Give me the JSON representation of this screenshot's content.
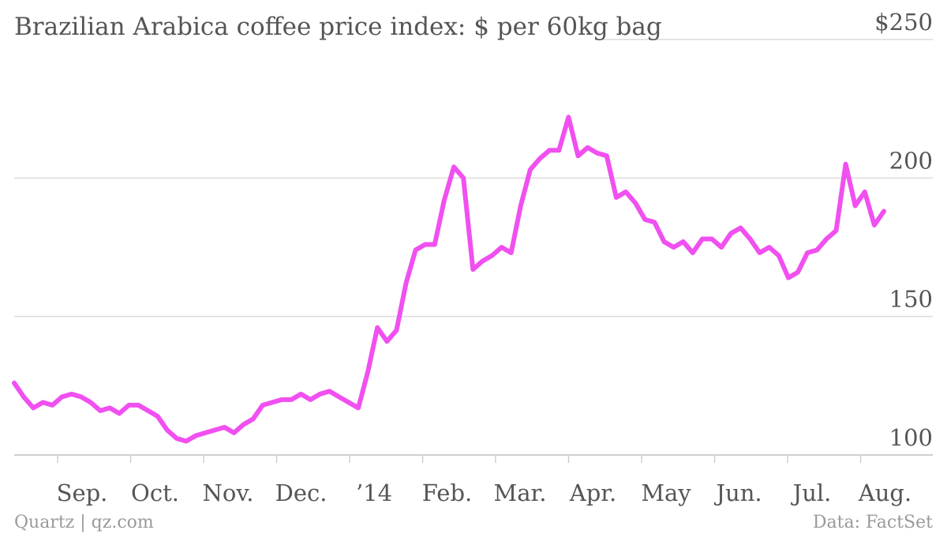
{
  "chart_data": {
    "type": "line",
    "title": "Brazilian Arabica coffee price index: $ per 60kg bag",
    "ylim": [
      100,
      250
    ],
    "y_ticks": [
      {
        "value": 250,
        "label": "$250"
      },
      {
        "value": 200,
        "label": "200"
      },
      {
        "value": 150,
        "label": "150"
      },
      {
        "value": 100,
        "label": "100"
      }
    ],
    "x_ticks": [
      "Sep.",
      "Oct.",
      "Nov.",
      "Dec.",
      "’14",
      "Feb.",
      "Mar.",
      "Apr.",
      "May",
      "Jun.",
      "Jul.",
      "Aug."
    ],
    "series": [
      {
        "color": "#f050f0",
        "x": [
          0,
          0.125,
          0.25,
          0.375,
          0.5,
          0.625,
          0.75,
          0.875,
          1,
          1.125,
          1.25,
          1.375,
          1.5,
          1.625,
          1.75,
          1.875,
          2,
          2.125,
          2.25,
          2.375,
          2.5,
          2.625,
          2.75,
          2.875,
          3,
          3.125,
          3.25,
          3.375,
          3.5,
          3.625,
          3.75,
          3.875,
          4,
          4.125,
          4.25,
          4.375,
          4.5,
          4.625,
          4.75,
          4.875,
          5,
          5.125,
          5.25,
          5.375,
          5.5,
          5.625,
          5.75,
          5.875,
          6,
          6.125,
          6.25,
          6.375,
          6.5,
          6.625,
          6.75,
          6.875,
          7,
          7.125,
          7.25,
          7.375,
          7.5,
          7.625,
          7.75,
          7.875,
          8,
          8.125,
          8.25,
          8.375,
          8.5,
          8.625,
          8.75,
          8.875,
          9,
          9.125,
          9.25,
          9.375,
          9.5,
          9.625,
          9.75,
          9.875,
          10,
          10.125,
          10.25,
          10.375,
          10.5,
          10.625,
          10.75,
          10.875,
          11,
          11.125,
          11.25,
          11.375
        ],
        "values": [
          126,
          121,
          117,
          119,
          118,
          121,
          122,
          121,
          119,
          116,
          117,
          115,
          118,
          118,
          116,
          114,
          109,
          106,
          105,
          107,
          108,
          109,
          110,
          108,
          111,
          113,
          118,
          119,
          120,
          120,
          122,
          120,
          122,
          123,
          121,
          119,
          117,
          130,
          146,
          141,
          145,
          162,
          174,
          176,
          176,
          192,
          204,
          200,
          167,
          170,
          172,
          175,
          173,
          190,
          203,
          207,
          210,
          210,
          222,
          208,
          211,
          209,
          208,
          193,
          195,
          191,
          185,
          184,
          177,
          175,
          177,
          173,
          178,
          178,
          175,
          180,
          182,
          178,
          173,
          175,
          172,
          164,
          166,
          173,
          174,
          178,
          181,
          205,
          190,
          195,
          183,
          188
        ]
      }
    ]
  },
  "footer": {
    "left": "Quartz | qz.com",
    "right": "Data: FactSet"
  }
}
